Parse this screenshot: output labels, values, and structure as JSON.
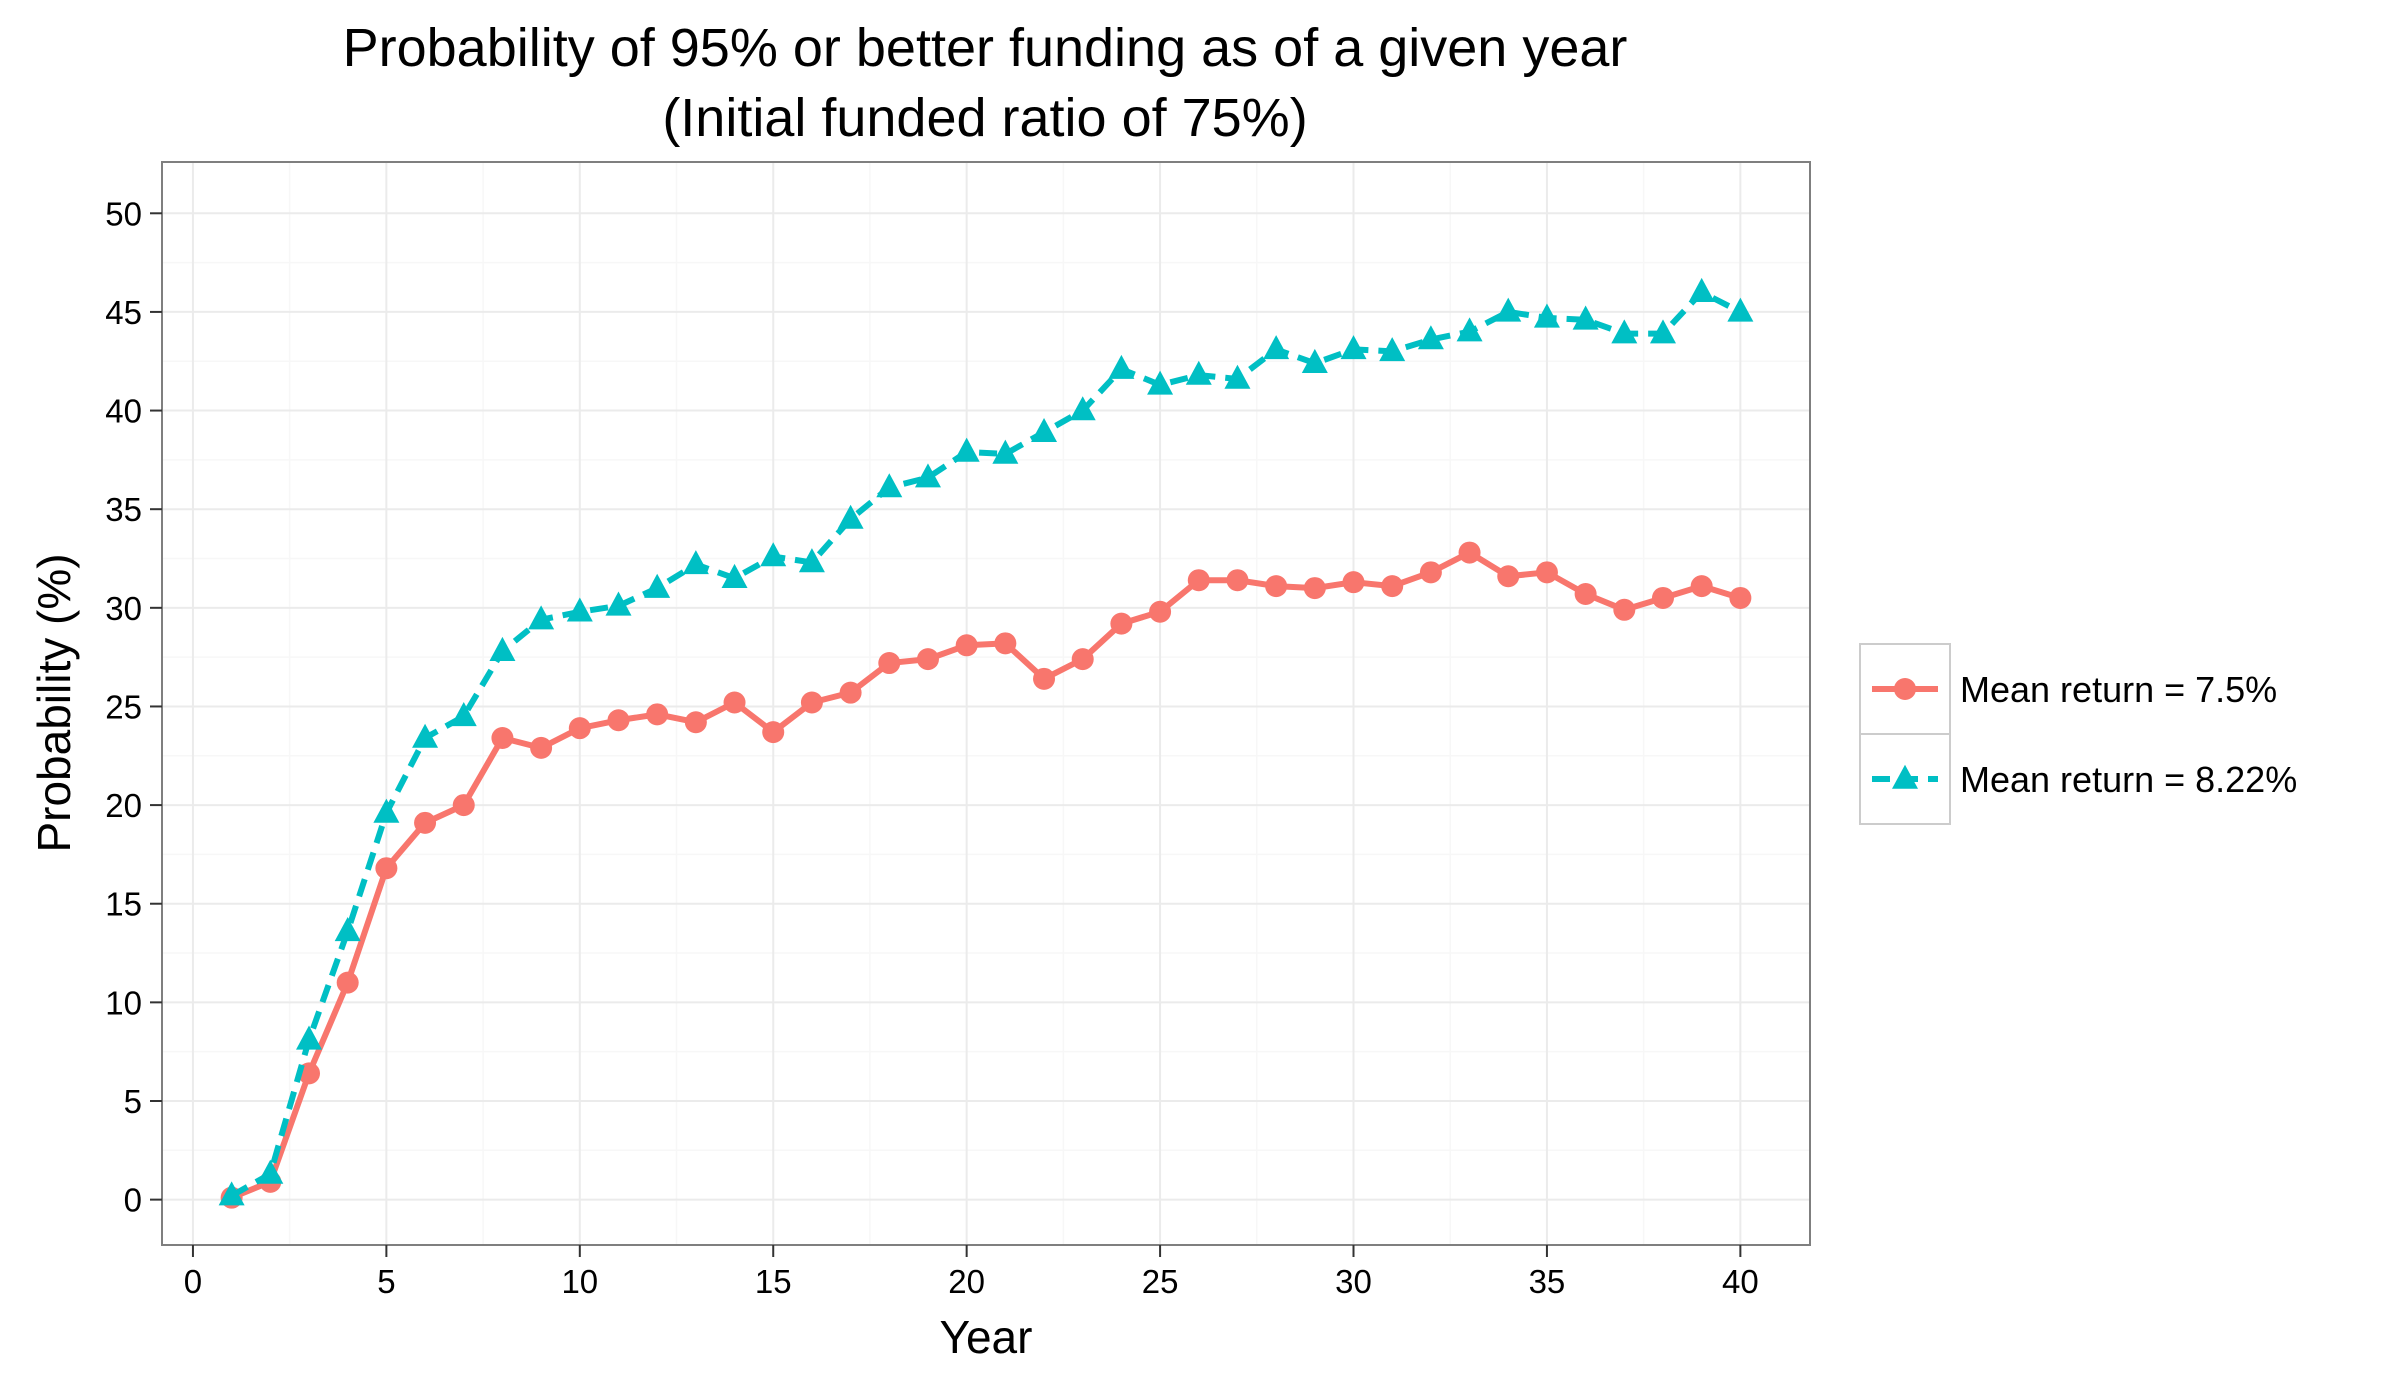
{
  "chart_data": {
    "type": "line",
    "title": "Probability of 95% or better funding as of a given year",
    "subtitle": "(Initial funded ratio of 75%)",
    "xlabel": "Year",
    "ylabel": "Probability (%)",
    "xlim": [
      -0.8,
      41.8
    ],
    "ylim": [
      -2.3,
      52.6
    ],
    "x_ticks": [
      0,
      5,
      10,
      15,
      20,
      25,
      30,
      35,
      40
    ],
    "y_ticks": [
      0,
      5,
      10,
      15,
      20,
      25,
      30,
      35,
      40,
      45,
      50
    ],
    "grid": true,
    "legend_position": "right",
    "x": [
      1,
      2,
      3,
      4,
      5,
      6,
      7,
      8,
      9,
      10,
      11,
      12,
      13,
      14,
      15,
      16,
      17,
      18,
      19,
      20,
      21,
      22,
      23,
      24,
      25,
      26,
      27,
      28,
      29,
      30,
      31,
      32,
      33,
      34,
      35,
      36,
      37,
      38,
      39,
      40
    ],
    "series": [
      {
        "name": "Mean return = 7.5%",
        "color": "#F8766D",
        "line_style": "solid",
        "marker": "circle",
        "values": [
          0.1,
          0.9,
          6.4,
          11.0,
          16.8,
          19.1,
          20.0,
          23.4,
          22.9,
          23.9,
          24.3,
          24.6,
          24.2,
          25.2,
          23.7,
          25.2,
          25.7,
          27.2,
          27.4,
          28.1,
          28.2,
          26.4,
          27.4,
          29.2,
          29.8,
          31.4,
          31.4,
          31.1,
          31.0,
          31.3,
          31.1,
          31.8,
          32.8,
          31.6,
          31.8,
          30.7,
          29.9,
          30.5,
          31.1,
          30.5
        ]
      },
      {
        "name": "Mean return = 8.22%",
        "color": "#00BFC4",
        "line_style": "dashed",
        "marker": "triangle",
        "values": [
          0.2,
          1.3,
          8.1,
          13.6,
          19.6,
          23.4,
          24.5,
          27.8,
          29.4,
          29.8,
          30.1,
          31.0,
          32.2,
          31.5,
          32.6,
          32.3,
          34.5,
          36.1,
          36.6,
          37.9,
          37.8,
          38.9,
          40.0,
          42.1,
          41.3,
          41.8,
          41.6,
          43.1,
          42.4,
          43.1,
          43.0,
          43.6,
          44.0,
          45.0,
          44.7,
          44.6,
          43.9,
          43.9,
          46.0,
          45.0
        ]
      }
    ]
  }
}
